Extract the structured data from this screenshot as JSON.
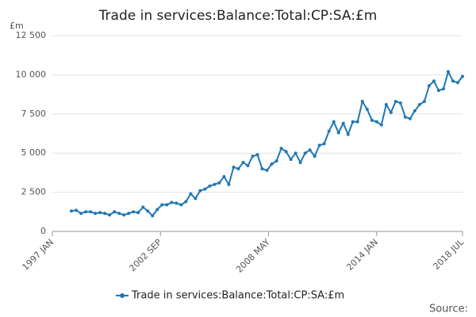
{
  "chart_data": {
    "type": "line",
    "title": "Trade in services:Balance:Total:CP:SA:£m",
    "y_unit": "£m",
    "source": "Source:",
    "x": [
      12,
      15,
      18,
      21,
      24,
      27,
      30,
      33,
      36,
      39,
      42,
      45,
      48,
      51,
      54,
      57,
      60,
      63,
      66,
      69,
      72,
      75,
      78,
      81,
      84,
      87,
      90,
      93,
      96,
      99,
      102,
      105,
      108,
      111,
      114,
      117,
      120,
      123,
      126,
      129,
      132,
      135,
      138,
      141,
      144,
      147,
      150,
      153,
      156,
      159,
      162,
      165,
      168,
      171,
      174,
      177,
      180,
      183,
      186,
      189,
      192,
      195,
      198,
      201,
      204,
      207,
      210,
      213,
      216,
      219,
      222,
      225,
      228,
      231,
      234,
      237,
      240,
      243,
      246,
      249,
      252,
      255,
      258
    ],
    "series": [
      {
        "name": "Trade in services:Balance:Total:CP:SA:£m",
        "color": "#1f78b4",
        "values": [
          1300,
          1350,
          1150,
          1250,
          1250,
          1150,
          1200,
          1150,
          1050,
          1250,
          1150,
          1050,
          1150,
          1250,
          1200,
          1550,
          1300,
          1000,
          1400,
          1700,
          1700,
          1850,
          1800,
          1700,
          1900,
          2400,
          2100,
          2600,
          2700,
          2900,
          3000,
          3100,
          3500,
          3000,
          4100,
          4000,
          4400,
          4200,
          4800,
          4900,
          4000,
          3900,
          4300,
          4500,
          5300,
          5100,
          4600,
          5000,
          4400,
          5000,
          5200,
          4800,
          5500,
          5600,
          6400,
          7000,
          6300,
          6900,
          6200,
          7000,
          7000,
          8300,
          7800,
          7100,
          7000,
          6800,
          8100,
          7600,
          8300,
          8200,
          7300,
          7200,
          7700,
          8100,
          8300,
          9300,
          9600,
          9000,
          9100,
          10200,
          9600,
          9500,
          9900
        ]
      }
    ],
    "xlim": [
      0,
      258
    ],
    "xticks": [
      {
        "value": 0,
        "label": "1997 JAN"
      },
      {
        "value": 68,
        "label": "2002 SEP"
      },
      {
        "value": 136,
        "label": "2008 MAY"
      },
      {
        "value": 204,
        "label": "2014 JAN"
      },
      {
        "value": 258,
        "label": "2018 JUL"
      }
    ],
    "ylim": [
      0,
      12500
    ],
    "yticks": [
      0,
      {
        "value": 2500,
        "label": "2 500"
      },
      {
        "value": 5000,
        "label": "5 000"
      },
      {
        "value": 7500,
        "label": "7 500"
      },
      {
        "value": 10000,
        "label": "10 000"
      },
      {
        "value": 12500,
        "label": "12 500"
      }
    ],
    "grid": true
  }
}
